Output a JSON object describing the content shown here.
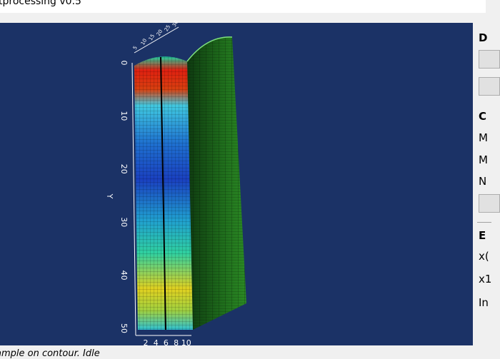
{
  "window": {
    "title": "tprocessing v0.5"
  },
  "viewport": {
    "y_axis": {
      "label": "Y",
      "ticks": [
        "0",
        "10",
        "20",
        "30",
        "40",
        "50"
      ]
    },
    "x_axis": {
      "ticks": [
        "2",
        "4",
        "6",
        "8",
        "10"
      ]
    },
    "z_axis": {
      "ticks": [
        "5",
        "10",
        "15",
        "20",
        "25",
        "30"
      ]
    }
  },
  "side_panel": {
    "sections": [
      {
        "heading": "D"
      },
      {
        "heading": "C",
        "rows": [
          "M",
          "M",
          "N"
        ]
      },
      {
        "heading": "E",
        "rows": [
          "x(",
          "x1",
          "In"
        ]
      }
    ]
  },
  "status": {
    "message": "ample on contour.",
    "state": "Idle"
  }
}
